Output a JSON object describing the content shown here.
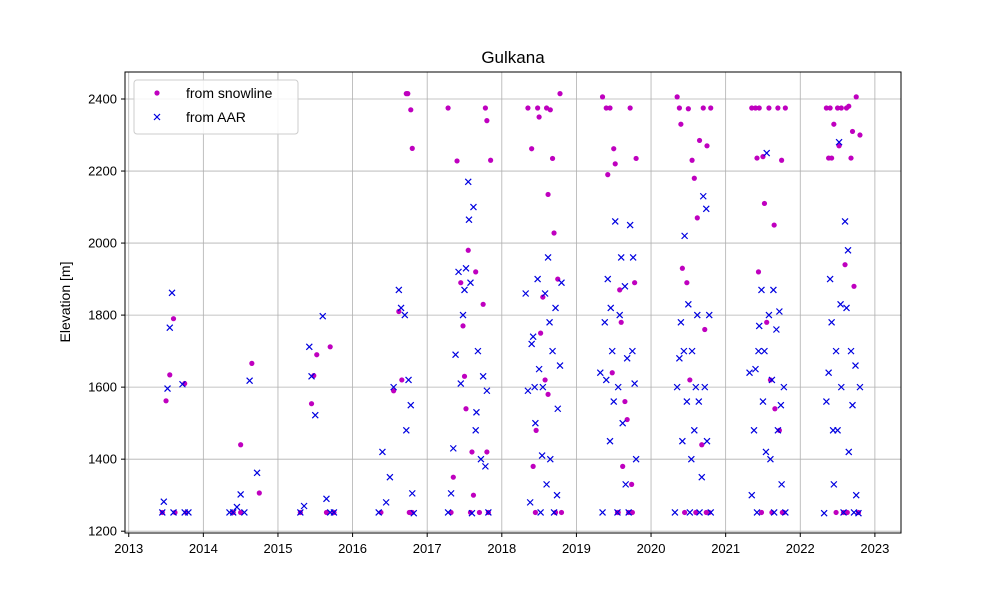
{
  "chart_data": {
    "type": "scatter",
    "title": "Gulkana",
    "xlabel": "",
    "ylabel": "Elevation [m]",
    "xlim": [
      2012.95,
      2023.35
    ],
    "ylim": [
      1195,
      2475
    ],
    "x_ticks": [
      2013,
      2014,
      2015,
      2016,
      2017,
      2018,
      2019,
      2020,
      2021,
      2022,
      2023
    ],
    "x_tick_labels": [
      "2013",
      "2014",
      "2015",
      "2016",
      "2017",
      "2018",
      "2019",
      "2020",
      "2021",
      "2022",
      "2023"
    ],
    "y_ticks": [
      1200,
      1400,
      1600,
      1800,
      2000,
      2200,
      2400
    ],
    "y_tick_labels": [
      "1200",
      "1400",
      "1600",
      "1800",
      "2000",
      "2200",
      "2400"
    ],
    "grid": true,
    "legend_position": "top-left",
    "series": [
      {
        "name": "from snowline",
        "marker": "dot",
        "color": "#bf00bf",
        "x": [
          2013.45,
          2013.5,
          2013.55,
          2013.6,
          2013.62,
          2013.75,
          2013.77,
          2014.4,
          2014.5,
          2014.5,
          2014.65,
          2014.75,
          2015.3,
          2015.45,
          2015.48,
          2015.52,
          2015.65,
          2015.7,
          2015.75,
          2016.38,
          2016.55,
          2016.62,
          2016.66,
          2016.72,
          2016.74,
          2016.76,
          2016.78,
          2016.8,
          2016.78,
          2016.8,
          2017.28,
          2017.32,
          2017.35,
          2017.4,
          2017.45,
          2017.48,
          2017.5,
          2017.52,
          2017.55,
          2017.58,
          2017.6,
          2017.62,
          2017.65,
          2017.7,
          2017.75,
          2017.78,
          2017.8,
          2017.82,
          2017.85,
          2017.8,
          2018.35,
          2018.4,
          2018.45,
          2018.48,
          2018.5,
          2018.55,
          2018.58,
          2018.6,
          2018.62,
          2018.65,
          2018.7,
          2018.72,
          2018.75,
          2018.78,
          2018.8,
          2018.42,
          2018.52,
          2018.68,
          2018.62,
          2018.46,
          2019.35,
          2019.4,
          2019.45,
          2019.5,
          2019.52,
          2019.55,
          2019.58,
          2019.6,
          2019.65,
          2019.7,
          2019.72,
          2019.75,
          2019.78,
          2019.8,
          2019.42,
          2019.48,
          2019.62,
          2019.68,
          2019.74,
          2019.56,
          2020.35,
          2020.38,
          2020.42,
          2020.45,
          2020.48,
          2020.5,
          2020.55,
          2020.58,
          2020.6,
          2020.65,
          2020.7,
          2020.72,
          2020.75,
          2020.78,
          2020.8,
          2020.4,
          2020.52,
          2020.62,
          2020.68,
          2020.74,
          2021.35,
          2021.4,
          2021.42,
          2021.45,
          2021.48,
          2021.5,
          2021.55,
          2021.58,
          2021.6,
          2021.62,
          2021.65,
          2021.7,
          2021.72,
          2021.75,
          2021.78,
          2021.8,
          2021.44,
          2021.52,
          2021.66,
          2021.76,
          2022.35,
          2022.38,
          2022.4,
          2022.42,
          2022.45,
          2022.48,
          2022.5,
          2022.52,
          2022.55,
          2022.58,
          2022.6,
          2022.62,
          2022.65,
          2022.68,
          2022.7,
          2022.72,
          2022.75,
          2022.78,
          2022.8,
          2022.63
        ],
        "y": [
          1252,
          1562,
          1634,
          1790,
          1252,
          1610,
          1252,
          1252,
          1252,
          1440,
          1666,
          1306,
          1252,
          1554,
          1632,
          1690,
          1252,
          1712,
          1252,
          1252,
          1590,
          1810,
          1620,
          2415,
          2415,
          1252,
          2370,
          2263,
          1252,
          1252,
          2375,
          1252,
          1350,
          2228,
          1890,
          1770,
          1630,
          1540,
          1980,
          1252,
          1420,
          1300,
          1920,
          1252,
          1830,
          2375,
          2340,
          1252,
          2230,
          1420,
          2375,
          2262,
          1252,
          2375,
          2350,
          1850,
          1620,
          2375,
          1580,
          2370,
          2028,
          1252,
          1900,
          2415,
          1252,
          1380,
          1750,
          2235,
          2135,
          1480,
          2406,
          2375,
          2375,
          2262,
          2220,
          1252,
          1870,
          1780,
          1560,
          1252,
          2375,
          1252,
          1890,
          2235,
          2190,
          1640,
          1380,
          1510,
          1330,
          1252,
          2406,
          2375,
          1930,
          1252,
          1890,
          2373,
          2230,
          2180,
          1252,
          2285,
          2375,
          1760,
          2270,
          1252,
          2375,
          2330,
          1620,
          2070,
          1440,
          1252,
          2375,
          2375,
          2236,
          2375,
          1252,
          2240,
          1780,
          2375,
          1620,
          1252,
          2050,
          2375,
          1480,
          2230,
          1252,
          2375,
          1920,
          2110,
          1540,
          1252,
          2375,
          2236,
          2375,
          2236,
          2330,
          1252,
          2375,
          2270,
          2375,
          1252,
          1940,
          2375,
          2380,
          2236,
          2310,
          1880,
          2406,
          1252,
          2300,
          1252
        ]
      },
      {
        "name": "from AAR",
        "marker": "x",
        "color": "#0000e0",
        "x": [
          2013.45,
          2013.47,
          2013.52,
          2013.55,
          2013.58,
          2013.6,
          2013.72,
          2013.75,
          2013.8,
          2014.35,
          2014.4,
          2014.45,
          2014.5,
          2014.55,
          2014.62,
          2014.72,
          2015.3,
          2015.35,
          2015.42,
          2015.45,
          2015.5,
          2015.6,
          2015.65,
          2015.7,
          2015.75,
          2016.35,
          2016.4,
          2016.45,
          2016.5,
          2016.55,
          2016.62,
          2016.65,
          2016.7,
          2016.72,
          2016.75,
          2016.78,
          2016.8,
          2016.82,
          2017.28,
          2017.32,
          2017.35,
          2017.38,
          2017.42,
          2017.45,
          2017.48,
          2017.5,
          2017.52,
          2017.55,
          2017.58,
          2017.6,
          2017.62,
          2017.65,
          2017.68,
          2017.72,
          2017.75,
          2017.78,
          2017.8,
          2017.82,
          2017.56,
          2017.66,
          2018.32,
          2018.35,
          2018.38,
          2018.4,
          2018.42,
          2018.45,
          2018.48,
          2018.5,
          2018.52,
          2018.55,
          2018.58,
          2018.6,
          2018.62,
          2018.65,
          2018.68,
          2018.7,
          2018.72,
          2018.75,
          2018.78,
          2018.8,
          2018.44,
          2018.54,
          2018.64,
          2018.74,
          2019.32,
          2019.35,
          2019.38,
          2019.4,
          2019.42,
          2019.45,
          2019.48,
          2019.5,
          2019.52,
          2019.55,
          2019.58,
          2019.6,
          2019.62,
          2019.65,
          2019.68,
          2019.7,
          2019.72,
          2019.75,
          2019.78,
          2019.8,
          2019.46,
          2019.56,
          2019.66,
          2019.76,
          2020.32,
          2020.35,
          2020.38,
          2020.4,
          2020.42,
          2020.45,
          2020.48,
          2020.5,
          2020.52,
          2020.55,
          2020.58,
          2020.6,
          2020.62,
          2020.65,
          2020.68,
          2020.7,
          2020.72,
          2020.75,
          2020.78,
          2020.8,
          2020.44,
          2020.54,
          2020.64,
          2020.74,
          2021.32,
          2021.35,
          2021.38,
          2021.4,
          2021.42,
          2021.45,
          2021.48,
          2021.5,
          2021.52,
          2021.55,
          2021.58,
          2021.6,
          2021.62,
          2021.65,
          2021.68,
          2021.7,
          2021.72,
          2021.75,
          2021.78,
          2021.8,
          2021.44,
          2021.54,
          2021.64,
          2021.74,
          2022.32,
          2022.35,
          2022.38,
          2022.4,
          2022.42,
          2022.45,
          2022.48,
          2022.5,
          2022.52,
          2022.55,
          2022.58,
          2022.6,
          2022.62,
          2022.65,
          2022.68,
          2022.7,
          2022.72,
          2022.75,
          2022.78,
          2022.8,
          2022.44,
          2022.54,
          2022.64,
          2022.74
        ],
        "y": [
          1252,
          1282,
          1596,
          1765,
          1862,
          1252,
          1608,
          1252,
          1252,
          1252,
          1252,
          1267,
          1302,
          1252,
          1618,
          1362,
          1252,
          1270,
          1712,
          1630,
          1522,
          1797,
          1290,
          1252,
          1252,
          1252,
          1420,
          1280,
          1350,
          1600,
          1870,
          1820,
          1800,
          1480,
          1620,
          1550,
          1305,
          1250,
          1252,
          1305,
          1430,
          1690,
          1920,
          1610,
          1800,
          1870,
          1930,
          2170,
          1890,
          1250,
          2100,
          1480,
          1700,
          1400,
          1630,
          1380,
          1590,
          1252,
          2065,
          1530,
          1860,
          1590,
          1280,
          1720,
          1740,
          1500,
          1900,
          1650,
          1252,
          1600,
          1860,
          1330,
          1960,
          1400,
          1700,
          1252,
          1820,
          1540,
          1660,
          1890,
          1600,
          1410,
          1780,
          1300,
          1640,
          1252,
          1780,
          1620,
          1900,
          1450,
          1700,
          1560,
          2060,
          1252,
          1800,
          1960,
          1500,
          1880,
          1680,
          1252,
          2050,
          1700,
          1610,
          1400,
          1820,
          1600,
          1330,
          1960,
          1252,
          1600,
          1680,
          1780,
          1450,
          2020,
          1560,
          1830,
          1252,
          1700,
          1480,
          1600,
          1800,
          1252,
          1350,
          2130,
          1600,
          1450,
          1800,
          1252,
          1700,
          1400,
          1560,
          2095,
          1640,
          1300,
          1480,
          1650,
          1252,
          1770,
          1870,
          1560,
          1700,
          2250,
          1800,
          1400,
          1620,
          1252,
          1760,
          1480,
          1810,
          1330,
          1600,
          1252,
          1700,
          1420,
          1870,
          1550,
          1250,
          1560,
          1640,
          1900,
          1780,
          1330,
          1700,
          1480,
          2280,
          1600,
          1252,
          2060,
          1820,
          1420,
          1700,
          1550,
          1252,
          1300,
          1250,
          1600,
          1480,
          1830,
          1980,
          1660
        ]
      }
    ]
  }
}
